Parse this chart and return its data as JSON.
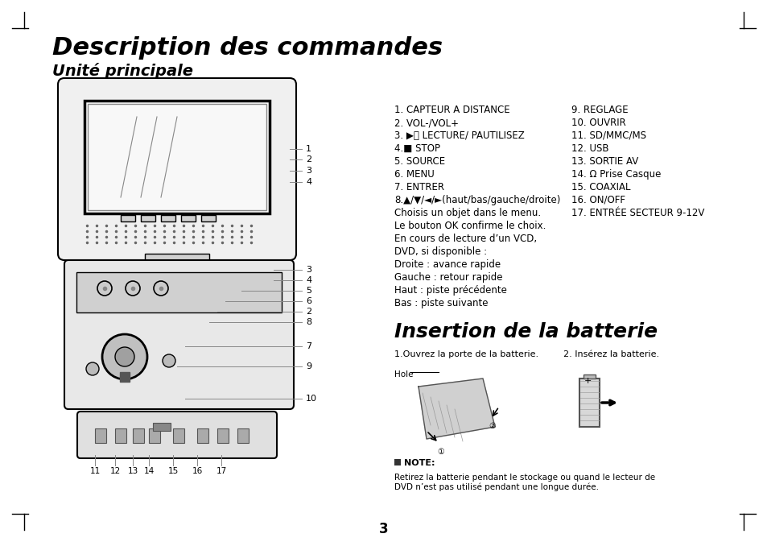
{
  "title": "Description des commandes",
  "subtitle": "Unité principale",
  "section2": "Insertion de la batterie",
  "bg_color": "#ffffff",
  "text_color": "#000000",
  "list_col1": [
    "1. CAPTEUR A DISTANCE",
    "2. VOL-/VOL+",
    "3. ▶⏸ LECTURE/ PAUTILISEZ",
    "4.■ STOP",
    "5. SOURCE",
    "6. MENU",
    "7. ENTRER",
    "8.▲/▼/◄/►(haut/bas/gauche/droite)",
    "Choisis un objet dans le menu.",
    "Le bouton OK confirme le choix.",
    "En cours de lecture d’un VCD,",
    "DVD, si disponible :",
    "Droite : avance rapide",
    "Gauche : retour rapide",
    "Haut : piste précédente",
    "Bas : piste suivante"
  ],
  "list_col2": [
    "9. REGLAGE",
    "10. OUVRIR",
    "11. SD/MMC/MS",
    "12. USB",
    "13. SORTIE AV",
    "14. Ω Prise Casque",
    "15. COAXIAL",
    "16. ON/OFF",
    "17. ENTRÉE SECTEUR 9-12V"
  ],
  "battery_step1": "1.Ouvrez la porte de la batterie.",
  "battery_step2": "2. Insérez la batterie.",
  "hole_label": "Hole",
  "note_title": "NOTE:",
  "note_text": "Retirez la batterie pendant le stockage ou quand le lecteur de\nDVD n’est pas utilisé pendant une longue durée.",
  "page_num": "3",
  "labels_top": [
    "1",
    "2",
    "3",
    "4"
  ],
  "labels_bottom": [
    "3",
    "4",
    "5",
    "6",
    "2",
    "8",
    "7",
    "9",
    "10"
  ],
  "labels_base": [
    "11",
    "12",
    "13",
    "14",
    "15",
    "16",
    "17"
  ]
}
